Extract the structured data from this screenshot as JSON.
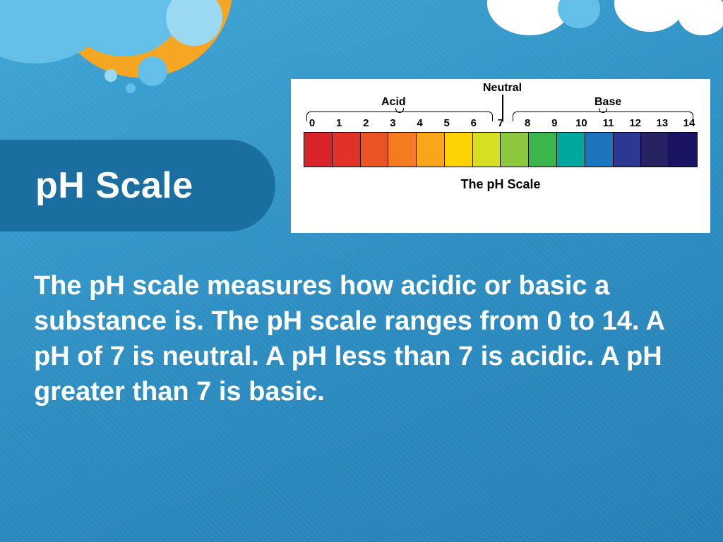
{
  "slide": {
    "title": "pH Scale",
    "body": "The pH scale measures how acidic or basic a substance is. The pH scale ranges from 0 to 14. A pH of 7 is neutral. A pH less than 7 is acidic. A pH greater than 7 is basic."
  },
  "chart": {
    "type": "ph-scale-colorbar",
    "title": "The pH Scale",
    "label_acid": "Acid",
    "label_neutral": "Neutral",
    "label_base": "Base",
    "values": [
      "0",
      "1",
      "2",
      "3",
      "4",
      "5",
      "6",
      "7",
      "8",
      "9",
      "10",
      "11",
      "12",
      "13",
      "14"
    ],
    "segment_colors": [
      "#d8232a",
      "#e1322a",
      "#ea5425",
      "#f47b20",
      "#faa61a",
      "#ffd200",
      "#d7df23",
      "#8dc63f",
      "#39b54a",
      "#00a79d",
      "#1c75bc",
      "#2b3990",
      "#262262",
      "#1b1464"
    ],
    "number_fontsize": 15,
    "label_fontsize": 16,
    "title_fontsize": 18,
    "tick_color": "#000000",
    "background_color": "#ffffff"
  },
  "theme": {
    "slide_bg_gradient": [
      "#3fa6d6",
      "#2c8cc0",
      "#257fb5"
    ],
    "title_pill_color": "#1b6fa0",
    "text_color": "#ffffff",
    "accent_sun": "#f5a623",
    "accent_cloud": "#63bfe8",
    "accent_cloud_light": "#9bd8f2",
    "body_fontsize": 38,
    "title_fontsize": 52
  }
}
